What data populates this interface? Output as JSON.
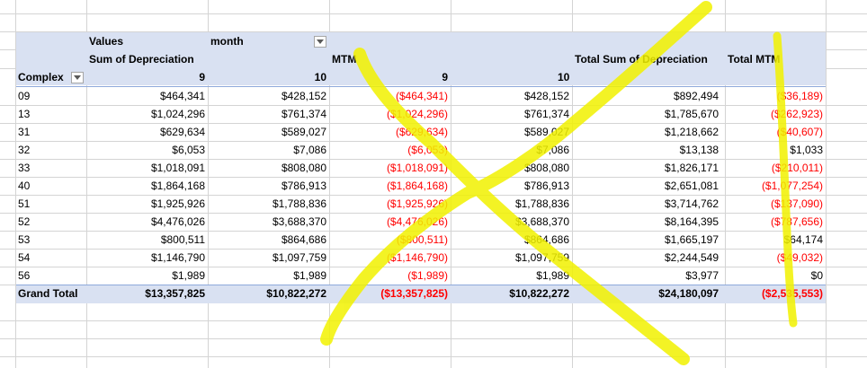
{
  "pivot": {
    "values_label": "Values",
    "month_label": "month",
    "sum_depr_label": "Sum of Depreciation",
    "mtm_label": "MTM",
    "total_sum_label": "Total Sum of Depreciation",
    "total_mtm_label": "Total MTM",
    "complex_label": "Complex",
    "month_9": "9",
    "month_10": "10",
    "month_9b": "9",
    "month_10b": "10",
    "rows": [
      {
        "complex": "09",
        "d9": "$464,341",
        "d10": "$428,152",
        "m9": "($464,341)",
        "m10": "$428,152",
        "td": "$892,494",
        "tm": "($36,189)"
      },
      {
        "complex": "13",
        "d9": "$1,024,296",
        "d10": "$761,374",
        "m9": "($1,024,296)",
        "m10": "$761,374",
        "td": "$1,785,670",
        "tm": "($262,923)"
      },
      {
        "complex": "31",
        "d9": "$629,634",
        "d10": "$589,027",
        "m9": "($629,634)",
        "m10": "$589,027",
        "td": "$1,218,662",
        "tm": "($40,607)"
      },
      {
        "complex": "32",
        "d9": "$6,053",
        "d10": "$7,086",
        "m9": "($6,053)",
        "m10": "$7,086",
        "td": "$13,138",
        "tm": "$1,033"
      },
      {
        "complex": "33",
        "d9": "$1,018,091",
        "d10": "$808,080",
        "m9": "($1,018,091)",
        "m10": "$808,080",
        "td": "$1,826,171",
        "tm": "($210,011)"
      },
      {
        "complex": "40",
        "d9": "$1,864,168",
        "d10": "$786,913",
        "m9": "($1,864,168)",
        "m10": "$786,913",
        "td": "$2,651,081",
        "tm": "($1,077,254)"
      },
      {
        "complex": "51",
        "d9": "$1,925,926",
        "d10": "$1,788,836",
        "m9": "($1,925,926)",
        "m10": "$1,788,836",
        "td": "$3,714,762",
        "tm": "($137,090)"
      },
      {
        "complex": "52",
        "d9": "$4,476,026",
        "d10": "$3,688,370",
        "m9": "($4,476,026)",
        "m10": "$3,688,370",
        "td": "$8,164,395",
        "tm": "($787,656)"
      },
      {
        "complex": "53",
        "d9": "$800,511",
        "d10": "$864,686",
        "m9": "($800,511)",
        "m10": "$864,686",
        "td": "$1,665,197",
        "tm": "$64,174"
      },
      {
        "complex": "54",
        "d9": "$1,146,790",
        "d10": "$1,097,759",
        "m9": "($1,146,790)",
        "m10": "$1,097,759",
        "td": "$2,244,549",
        "tm": "($49,032)"
      },
      {
        "complex": "56",
        "d9": "$1,989",
        "d10": "$1,989",
        "m9": "($1,989)",
        "m10": "$1,989",
        "td": "$3,977",
        "tm": "$0"
      }
    ],
    "grand_total": {
      "label": "Grand Total",
      "d9": "$13,357,825",
      "d10": "$10,822,272",
      "m9": "($13,357,825)",
      "m10": "$10,822,272",
      "td": "$24,180,097",
      "tm": "($2,535,553)"
    }
  },
  "colors": {
    "header_fill": "#d9e1f2",
    "negative": "#ff0000",
    "highlighter": "#f2f200",
    "gridline": "#d4d4d4"
  },
  "icons": {
    "filter": "filter-dropdown-icon",
    "annotation": "yellow-cross-annotation"
  }
}
